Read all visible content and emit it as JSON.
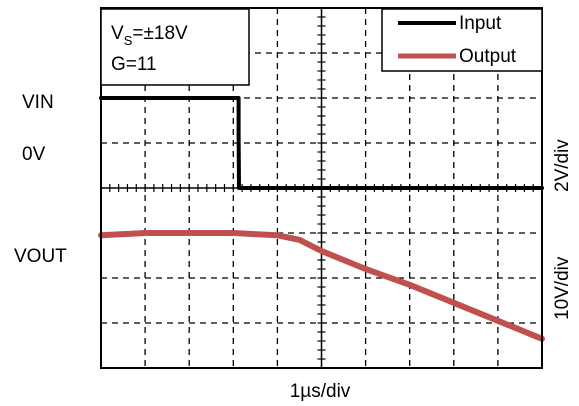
{
  "chart_data": {
    "type": "line",
    "xlabel": "1µs/div",
    "left_labels": {
      "vin": "VIN",
      "zero": "0V",
      "vout": "VOUT"
    },
    "right_labels": {
      "input_scale": "2V/div",
      "output_scale": "10V/div"
    },
    "conditions": {
      "supply_main": "V",
      "supply_sub": "S",
      "supply_value": "=±18V",
      "gain": "G=11"
    },
    "legend": {
      "position": "top-right"
    },
    "x_divisions": 10,
    "y_divisions": 8,
    "grid": true,
    "series": [
      {
        "name": "Input",
        "color": "#000000",
        "units": "div",
        "x": [
          0,
          3.12,
          3.12,
          3.13,
          3.18,
          10
        ],
        "y": [
          6.0,
          6.0,
          5.2,
          4.0,
          4.0,
          4.0
        ]
      },
      {
        "name": "Output",
        "color": "#c0504d",
        "units": "div",
        "x": [
          0,
          1,
          2,
          3,
          4,
          4.5,
          5,
          6,
          7,
          8,
          9,
          10
        ],
        "y": [
          2.95,
          3.0,
          3.0,
          3.0,
          2.95,
          2.85,
          2.6,
          2.2,
          1.85,
          1.45,
          1.05,
          0.65
        ]
      }
    ]
  }
}
